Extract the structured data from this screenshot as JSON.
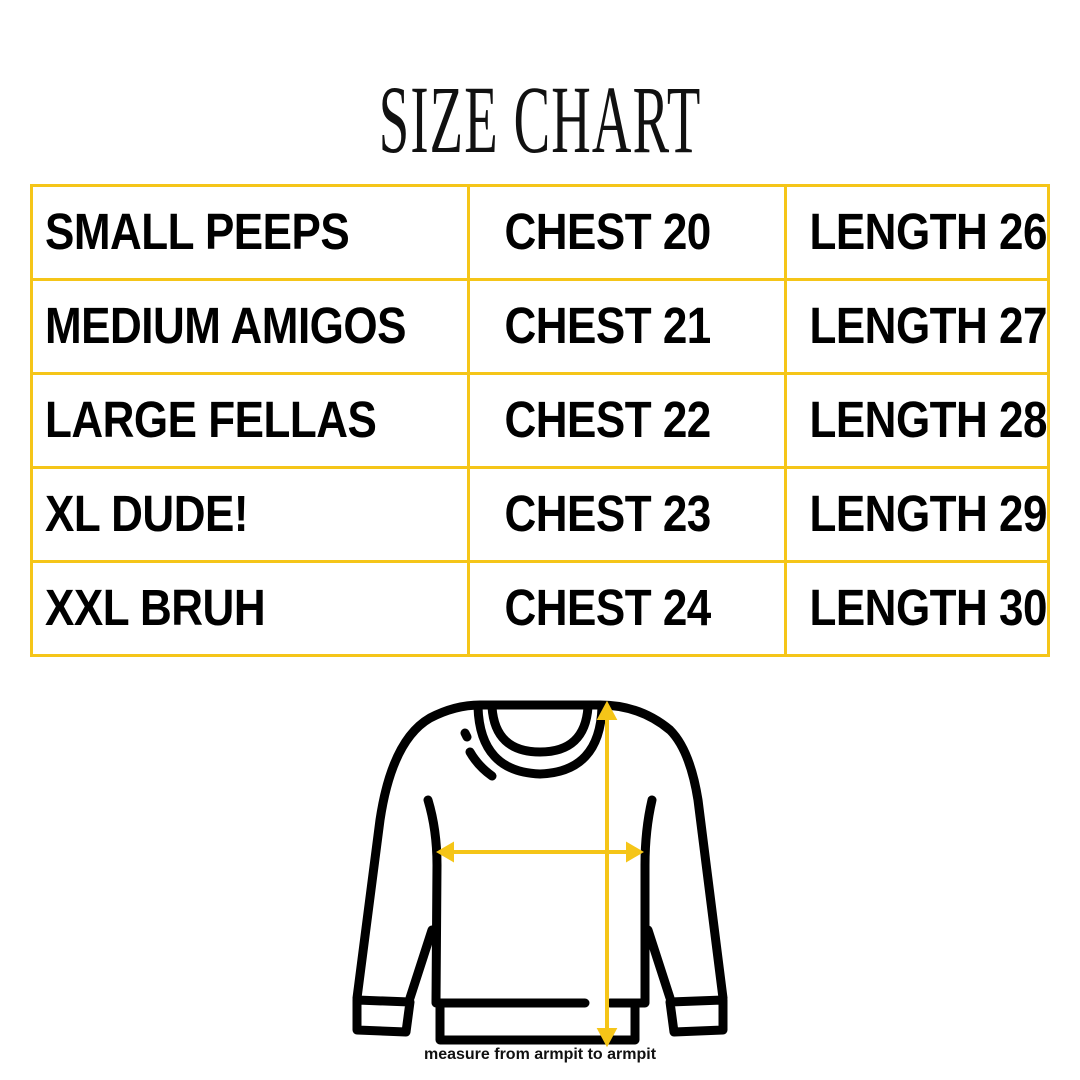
{
  "title": "SIZE CHART",
  "colors": {
    "accent": "#f5c518",
    "text": "#000000"
  },
  "rows": [
    {
      "size": "SMALL PEEPS",
      "chest": "CHEST 20",
      "length": "LENGTH 26"
    },
    {
      "size": "MEDIUM AMIGOS",
      "chest": "CHEST 21",
      "length": "LENGTH 27"
    },
    {
      "size": "LARGE FELLAS",
      "chest": "CHEST 22",
      "length": "LENGTH 28"
    },
    {
      "size": "XL DUDE!",
      "chest": "CHEST 23",
      "length": "LENGTH 29"
    },
    {
      "size": "XXL BRUH",
      "chest": "CHEST 24",
      "length": "LENGTH 30"
    }
  ],
  "illustration": {
    "icon": "sweatshirt-measurement-icon",
    "caption": "measure from armpit to armpit"
  }
}
